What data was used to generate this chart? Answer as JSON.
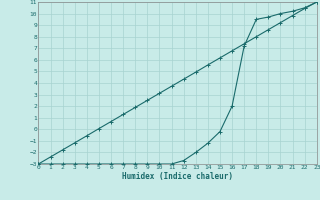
{
  "xlabel": "Humidex (Indice chaleur)",
  "bg_color": "#c8ebe8",
  "grid_color": "#a8d4d0",
  "line_color": "#1a6b6b",
  "spine_color": "#888888",
  "xmin": 0,
  "xmax": 23,
  "ymin": -3,
  "ymax": 11,
  "line1_x": [
    0,
    1,
    2,
    3,
    4,
    5,
    6,
    7,
    8,
    9,
    10,
    11,
    12,
    13,
    14,
    15,
    16,
    17,
    18,
    19,
    20,
    21,
    22,
    23
  ],
  "line1_y": [
    -3.0,
    -2.39,
    -1.78,
    -1.17,
    -0.56,
    0.06,
    0.67,
    1.28,
    1.89,
    2.5,
    3.11,
    3.72,
    4.33,
    4.94,
    5.56,
    6.17,
    6.78,
    7.39,
    8.0,
    8.61,
    9.22,
    9.83,
    10.44,
    11.0
  ],
  "line2_x": [
    0,
    1,
    2,
    3,
    4,
    5,
    6,
    7,
    8,
    9,
    10,
    11,
    12,
    13,
    14,
    15,
    16,
    17,
    18,
    19,
    20,
    21,
    22,
    23
  ],
  "line2_y": [
    -3,
    -3,
    -3,
    -3,
    -3,
    -3,
    -3,
    -3,
    -3,
    -3,
    -3,
    -3,
    -2.7,
    -2.0,
    -1.2,
    -0.2,
    2.0,
    7.2,
    9.5,
    9.7,
    10.0,
    10.2,
    10.5,
    11.0
  ],
  "xticks": [
    0,
    1,
    2,
    3,
    4,
    5,
    6,
    7,
    8,
    9,
    10,
    11,
    12,
    13,
    14,
    15,
    16,
    17,
    18,
    19,
    20,
    21,
    22,
    23
  ],
  "yticks": [
    -3,
    -2,
    -1,
    0,
    1,
    2,
    3,
    4,
    5,
    6,
    7,
    8,
    9,
    10,
    11
  ]
}
